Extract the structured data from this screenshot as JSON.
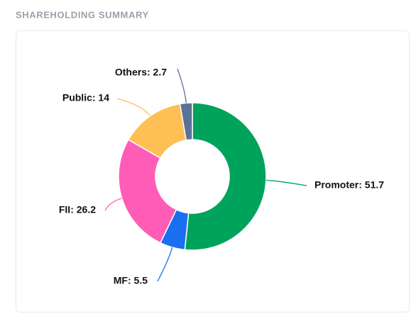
{
  "chart_data": {
    "type": "donut",
    "title": "SHAREHOLDING SUMMARY",
    "values": [
      51.7,
      5.5,
      26.2,
      14,
      2.7
    ],
    "value_labels": [
      "Promoter: 51.7",
      "MF: 5.5",
      "FII: 26.2",
      "Public: 14",
      "Others: 2.7"
    ],
    "colors": [
      "#00a35c",
      "#1a6ff0",
      "#ff5cb8",
      "#ffbf55",
      "#5b7197"
    ]
  }
}
